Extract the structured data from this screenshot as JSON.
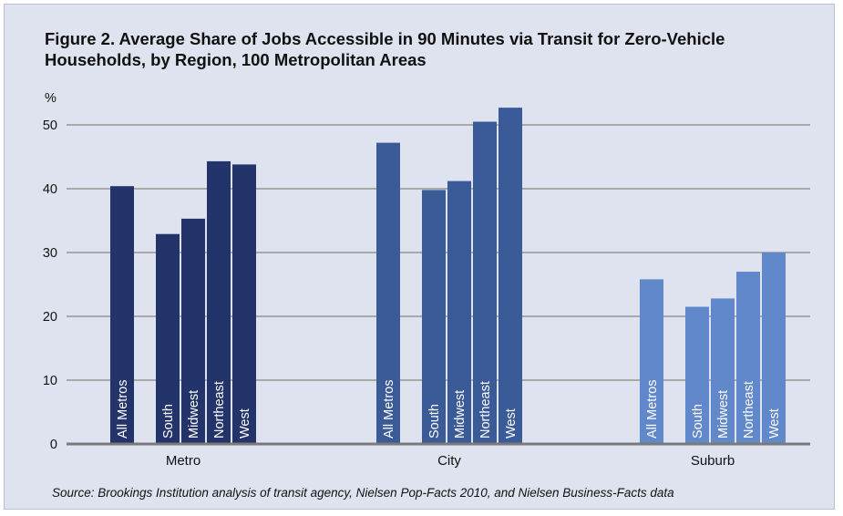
{
  "title": "Figure 2. Average Share of Jobs Accessible in 90 Minutes via Transit for Zero-Vehicle Households, by Region, 100 Metropolitan Areas",
  "source": "Source: Brookings Institution analysis of transit agency, Nielsen Pop-Facts 2010, and Nielsen Business-Facts data",
  "colors": {
    "Metro": "#22346a",
    "City": "#3a5b97",
    "Suburb": "#6088cb",
    "grid": "#a9a9a9",
    "background": "#dfe3f0"
  },
  "chart_data": {
    "type": "bar",
    "ylabel": "%",
    "ylim": [
      0,
      50
    ],
    "yticks": [
      0,
      10,
      20,
      30,
      40,
      50
    ],
    "grid": true,
    "groups": [
      {
        "name": "Metro",
        "bars": [
          {
            "label": "All Metros",
            "value": 40.4
          },
          {
            "label": "South",
            "value": 32.9
          },
          {
            "label": "Midwest",
            "value": 35.3
          },
          {
            "label": "Northeast",
            "value": 44.3
          },
          {
            "label": "West",
            "value": 43.8
          }
        ]
      },
      {
        "name": "City",
        "bars": [
          {
            "label": "All Metros",
            "value": 47.2
          },
          {
            "label": "South",
            "value": 39.8
          },
          {
            "label": "Midwest",
            "value": 41.2
          },
          {
            "label": "Northeast",
            "value": 50.5
          },
          {
            "label": "West",
            "value": 52.7
          }
        ]
      },
      {
        "name": "Suburb",
        "bars": [
          {
            "label": "All Metros",
            "value": 25.8
          },
          {
            "label": "South",
            "value": 21.5
          },
          {
            "label": "Midwest",
            "value": 22.8
          },
          {
            "label": "Northeast",
            "value": 27.0
          },
          {
            "label": "West",
            "value": 30.0
          }
        ]
      }
    ]
  }
}
